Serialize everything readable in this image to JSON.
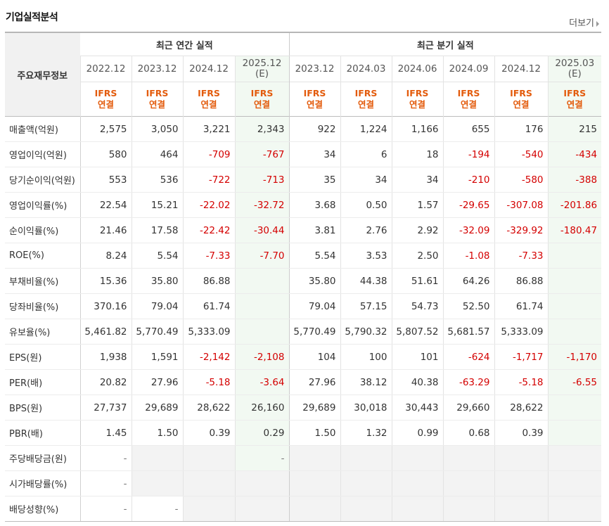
{
  "title": "기업실적분석",
  "more_label": "더보기",
  "header": {
    "left_label": "주요재무정보",
    "annual_group": "최근 연간 실적",
    "quarter_group": "최근 분기 실적",
    "periods": [
      {
        "date": "2022.12",
        "est": ""
      },
      {
        "date": "2023.12",
        "est": ""
      },
      {
        "date": "2024.12",
        "est": ""
      },
      {
        "date": "2025.12",
        "est": "(E)"
      },
      {
        "date": "2023.12",
        "est": ""
      },
      {
        "date": "2024.03",
        "est": ""
      },
      {
        "date": "2024.06",
        "est": ""
      },
      {
        "date": "2024.09",
        "est": ""
      },
      {
        "date": "2024.12",
        "est": ""
      },
      {
        "date": "2025.03",
        "est": "(E)"
      }
    ],
    "ifrs_top": "IFRS",
    "ifrs_bottom": "연결"
  },
  "rows": [
    {
      "label": "매출액(억원)",
      "values": [
        "2,575",
        "3,050",
        "3,221",
        "2,343",
        "922",
        "1,224",
        "1,166",
        "655",
        "176",
        "215"
      ]
    },
    {
      "label": "영업이익(억원)",
      "values": [
        "580",
        "464",
        "-709",
        "-767",
        "34",
        "6",
        "18",
        "-194",
        "-540",
        "-434"
      ]
    },
    {
      "label": "당기순이익(억원)",
      "values": [
        "553",
        "536",
        "-722",
        "-713",
        "35",
        "34",
        "34",
        "-210",
        "-580",
        "-388"
      ]
    },
    {
      "label": "영업이익률(%)",
      "values": [
        "22.54",
        "15.21",
        "-22.02",
        "-32.72",
        "3.68",
        "0.50",
        "1.57",
        "-29.65",
        "-307.08",
        "-201.86"
      ]
    },
    {
      "label": "순이익률(%)",
      "values": [
        "21.46",
        "17.58",
        "-22.42",
        "-30.44",
        "3.81",
        "2.76",
        "2.92",
        "-32.09",
        "-329.92",
        "-180.47"
      ]
    },
    {
      "label": "ROE(%)",
      "values": [
        "8.24",
        "5.54",
        "-7.33",
        "-7.70",
        "5.54",
        "3.53",
        "2.50",
        "-1.08",
        "-7.33",
        ""
      ]
    },
    {
      "label": "부채비율(%)",
      "values": [
        "15.36",
        "35.80",
        "86.88",
        "",
        "35.80",
        "44.38",
        "51.61",
        "64.26",
        "86.88",
        ""
      ]
    },
    {
      "label": "당좌비율(%)",
      "values": [
        "370.16",
        "79.04",
        "61.74",
        "",
        "79.04",
        "57.15",
        "54.73",
        "52.50",
        "61.74",
        ""
      ]
    },
    {
      "label": "유보율(%)",
      "values": [
        "5,461.82",
        "5,770.49",
        "5,333.09",
        "",
        "5,770.49",
        "5,790.32",
        "5,807.52",
        "5,681.57",
        "5,333.09",
        ""
      ]
    },
    {
      "label": "EPS(원)",
      "values": [
        "1,938",
        "1,591",
        "-2,142",
        "-2,108",
        "104",
        "100",
        "101",
        "-624",
        "-1,717",
        "-1,170"
      ]
    },
    {
      "label": "PER(배)",
      "values": [
        "20.82",
        "27.96",
        "-5.18",
        "-3.64",
        "27.96",
        "38.12",
        "40.38",
        "-63.29",
        "-5.18",
        "-6.55"
      ]
    },
    {
      "label": "BPS(원)",
      "values": [
        "27,737",
        "29,689",
        "28,622",
        "26,160",
        "29,689",
        "30,018",
        "30,443",
        "29,660",
        "28,622",
        ""
      ]
    },
    {
      "label": "PBR(배)",
      "values": [
        "1.45",
        "1.50",
        "0.39",
        "0.29",
        "1.50",
        "1.32",
        "0.99",
        "0.68",
        "0.39",
        ""
      ]
    },
    {
      "label": "주당배당금(원)",
      "values": [
        "-",
        "",
        "",
        "-",
        "",
        "",
        "",
        "",
        "",
        ""
      ]
    },
    {
      "label": "시가배당률(%)",
      "values": [
        "-",
        "",
        "",
        "",
        "",
        "",
        "",
        "",
        "",
        ""
      ]
    },
    {
      "label": "배당성향(%)",
      "values": [
        "-",
        "-",
        "",
        "",
        "",
        "",
        "",
        "",
        "",
        ""
      ]
    }
  ],
  "colors": {
    "negative": "#d40000",
    "ifrs": "#e35b0c",
    "estimate_bg": "#f2f9f2",
    "empty_bg": "#f3f3f3"
  }
}
